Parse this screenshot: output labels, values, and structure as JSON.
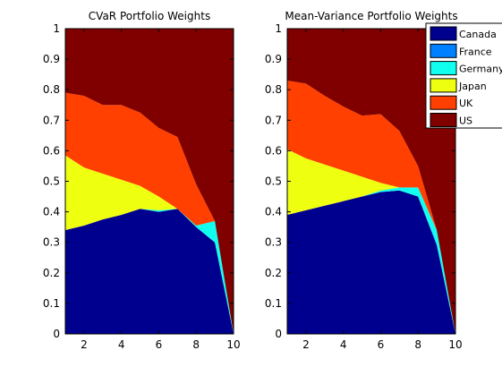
{
  "chart_data": [
    {
      "type": "area",
      "title": "CVaR Portfolio Weights",
      "xlabel": "",
      "ylabel": "",
      "xlim": [
        1,
        10
      ],
      "ylim": [
        0,
        1
      ],
      "xticks": [
        2,
        4,
        6,
        8,
        10
      ],
      "yticks": [
        0,
        0.1,
        0.2,
        0.3,
        0.4,
        0.5,
        0.6,
        0.7,
        0.8,
        0.9,
        1
      ],
      "stacked": true,
      "x": [
        1,
        2,
        3,
        4,
        5,
        6,
        7,
        8,
        9,
        10
      ],
      "series": [
        {
          "name": "Canada",
          "color": "#00008F",
          "values": [
            0.34,
            0.355,
            0.375,
            0.39,
            0.41,
            0.4,
            0.41,
            0.35,
            0.3,
            0.0
          ]
        },
        {
          "name": "France",
          "color": "#0080FF",
          "values": [
            0,
            0,
            0,
            0,
            0,
            0,
            0,
            0,
            0,
            0
          ]
        },
        {
          "name": "Germany",
          "color": "#10FFEF",
          "values": [
            0,
            0,
            0,
            0,
            0,
            0.005,
            0,
            0.005,
            0.07,
            0.0
          ]
        },
        {
          "name": "Japan",
          "color": "#EFFF10",
          "values": [
            0.245,
            0.19,
            0.15,
            0.115,
            0.075,
            0.045,
            0,
            0,
            0,
            0
          ]
        },
        {
          "name": "UK",
          "color": "#FF4000",
          "values": [
            0.205,
            0.235,
            0.225,
            0.245,
            0.24,
            0.225,
            0.235,
            0.135,
            0,
            0
          ]
        },
        {
          "name": "US",
          "color": "#800000",
          "values": [
            0.21,
            0.22,
            0.25,
            0.25,
            0.275,
            0.325,
            0.355,
            0.51,
            0.63,
            1.0
          ]
        }
      ]
    },
    {
      "type": "area",
      "title": "Mean-Variance Portfolio Weights",
      "xlabel": "",
      "ylabel": "",
      "xlim": [
        1,
        10
      ],
      "ylim": [
        0,
        1
      ],
      "xticks": [
        2,
        4,
        6,
        8,
        10
      ],
      "yticks": [
        0,
        0.1,
        0.2,
        0.3,
        0.4,
        0.5,
        0.6,
        0.7,
        0.8,
        0.9,
        1
      ],
      "stacked": true,
      "legend_position": "top-right",
      "x": [
        1,
        2,
        3,
        4,
        5,
        6,
        7,
        8,
        9,
        10
      ],
      "series": [
        {
          "name": "Canada",
          "color": "#00008F",
          "values": [
            0.39,
            0.405,
            0.42,
            0.435,
            0.45,
            0.465,
            0.47,
            0.45,
            0.29,
            0.0
          ]
        },
        {
          "name": "France",
          "color": "#0080FF",
          "values": [
            0,
            0,
            0,
            0,
            0,
            0,
            0,
            0,
            0.005,
            0
          ]
        },
        {
          "name": "Germany",
          "color": "#10FFEF",
          "values": [
            0,
            0,
            0,
            0,
            0,
            0.005,
            0.01,
            0.03,
            0.045,
            0.0
          ]
        },
        {
          "name": "Japan",
          "color": "#EFFF10",
          "values": [
            0.215,
            0.17,
            0.135,
            0.1,
            0.065,
            0.025,
            0,
            0,
            0,
            0
          ]
        },
        {
          "name": "UK",
          "color": "#FF4000",
          "values": [
            0.225,
            0.245,
            0.225,
            0.21,
            0.2,
            0.225,
            0.185,
            0.07,
            0,
            0
          ]
        },
        {
          "name": "US",
          "color": "#800000",
          "values": [
            0.17,
            0.18,
            0.22,
            0.255,
            0.285,
            0.28,
            0.335,
            0.45,
            0.66,
            1.0
          ]
        }
      ]
    }
  ],
  "legend": {
    "items": [
      "Canada",
      "France",
      "Germany",
      "Japan",
      "UK",
      "US"
    ]
  }
}
